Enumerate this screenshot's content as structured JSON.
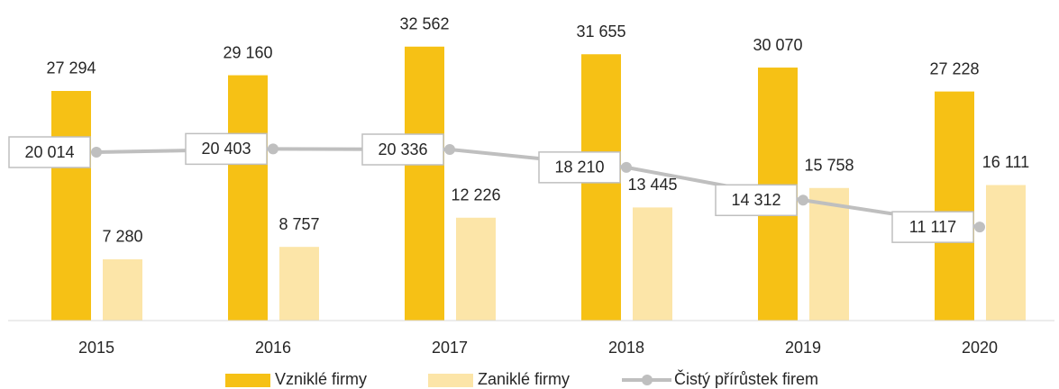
{
  "chart_data": {
    "type": "bar",
    "categories": [
      "2015",
      "2016",
      "2017",
      "2018",
      "2019",
      "2020"
    ],
    "ylim": [
      0,
      35000
    ],
    "series": [
      {
        "name": "Vzniklé firmy",
        "type": "bar",
        "color": "#f6c115",
        "values": [
          27294,
          29160,
          32562,
          31655,
          30070,
          27228
        ],
        "value_labels": [
          "27 294",
          "29 160",
          "32 562",
          "31 655",
          "30 070",
          "27 228"
        ]
      },
      {
        "name": "Zaniklé firmy",
        "type": "bar",
        "color": "#fce5a8",
        "values": [
          7280,
          8757,
          12226,
          13445,
          15758,
          16111
        ],
        "value_labels": [
          "7 280",
          "8 757",
          "12 226",
          "13 445",
          "15 758",
          "16 111"
        ]
      },
      {
        "name": "Čistý přírůstek firem",
        "type": "line",
        "color": "#bfbfbf",
        "values": [
          20014,
          20403,
          20336,
          18210,
          14312,
          11117
        ],
        "value_labels": [
          "20 014",
          "20 403",
          "20 336",
          "18 210",
          "14 312",
          "11 117"
        ]
      }
    ]
  }
}
